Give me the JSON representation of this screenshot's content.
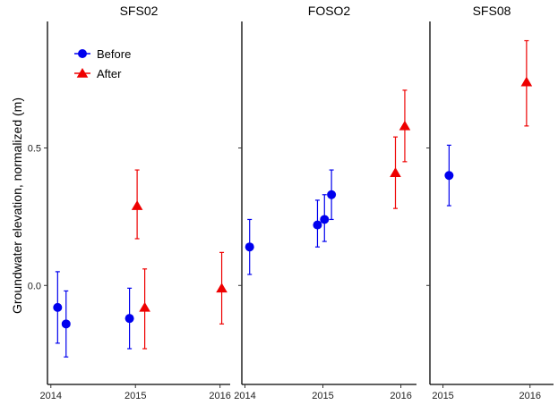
{
  "chart_data": {
    "type": "scatter",
    "ylabel": "Groundwater elevation, normalized (m)",
    "ylim": [
      -0.36,
      0.96
    ],
    "y_ticks": [
      0.0,
      0.5
    ],
    "y_tick_labels": [
      "0.0",
      "0.5"
    ],
    "grid": false,
    "legend": {
      "placement": "top-left",
      "entries": [
        {
          "name": "Before",
          "color": "#0000ee",
          "marker": "circle"
        },
        {
          "name": "After",
          "color": "#ee0000",
          "marker": "triangle"
        }
      ]
    },
    "colors": {
      "before": "#0000ee",
      "after": "#ee0000"
    },
    "panels": [
      {
        "title": "SFS02",
        "xlim": [
          2013.96,
          2016.12
        ],
        "x_ticks": [
          2014,
          2015,
          2016
        ],
        "x_tick_labels": [
          "2014",
          "2015",
          "2016"
        ],
        "series": [
          {
            "name": "Before",
            "points": [
              {
                "x": 2014.08,
                "y": -0.08,
                "ylow": -0.21,
                "yhigh": 0.05
              },
              {
                "x": 2014.18,
                "y": -0.14,
                "ylow": -0.26,
                "yhigh": -0.02
              },
              {
                "x": 2014.93,
                "y": -0.12,
                "ylow": -0.23,
                "yhigh": -0.01
              }
            ]
          },
          {
            "name": "After",
            "points": [
              {
                "x": 2015.02,
                "y": 0.29,
                "ylow": 0.17,
                "yhigh": 0.42
              },
              {
                "x": 2015.11,
                "y": -0.08,
                "ylow": -0.23,
                "yhigh": 0.06
              },
              {
                "x": 2016.02,
                "y": -0.01,
                "ylow": -0.14,
                "yhigh": 0.12
              }
            ]
          }
        ]
      },
      {
        "title": "FOSO2",
        "xlim": [
          2013.96,
          2016.2
        ],
        "x_ticks": [
          2014,
          2015,
          2016
        ],
        "x_tick_labels": [
          "2014",
          "2015",
          "2016"
        ],
        "series": [
          {
            "name": "Before",
            "points": [
              {
                "x": 2014.06,
                "y": 0.14,
                "ylow": 0.04,
                "yhigh": 0.24
              },
              {
                "x": 2014.93,
                "y": 0.22,
                "ylow": 0.14,
                "yhigh": 0.31
              },
              {
                "x": 2015.02,
                "y": 0.24,
                "ylow": 0.16,
                "yhigh": 0.33
              },
              {
                "x": 2015.11,
                "y": 0.33,
                "ylow": 0.24,
                "yhigh": 0.42
              }
            ]
          },
          {
            "name": "After",
            "points": [
              {
                "x": 2015.93,
                "y": 0.41,
                "ylow": 0.28,
                "yhigh": 0.54
              },
              {
                "x": 2016.05,
                "y": 0.58,
                "ylow": 0.45,
                "yhigh": 0.71
              }
            ]
          }
        ]
      },
      {
        "title": "SFS08",
        "xlim": [
          2014.85,
          2016.27
        ],
        "x_ticks": [
          2015,
          2016
        ],
        "x_tick_labels": [
          "2015",
          "2016"
        ],
        "series": [
          {
            "name": "Before",
            "points": [
              {
                "x": 2015.07,
                "y": 0.4,
                "ylow": 0.29,
                "yhigh": 0.51
              }
            ]
          },
          {
            "name": "After",
            "points": [
              {
                "x": 2015.96,
                "y": 0.74,
                "ylow": 0.58,
                "yhigh": 0.89
              }
            ]
          }
        ]
      }
    ]
  }
}
